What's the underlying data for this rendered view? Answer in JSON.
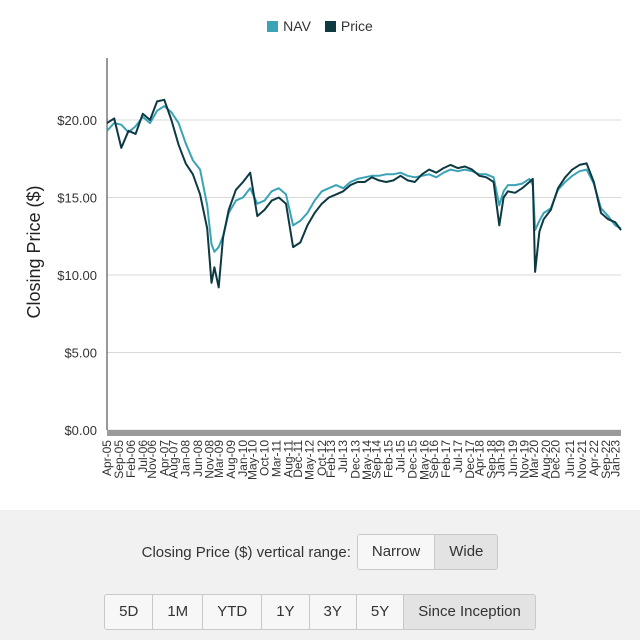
{
  "legend": {
    "nav_label": "NAV",
    "price_label": "Price"
  },
  "range_control": {
    "label": "Closing Price ($) vertical range:",
    "options": [
      "Narrow",
      "Wide"
    ],
    "selected": "Wide"
  },
  "period_buttons": [
    "5D",
    "1M",
    "YTD",
    "1Y",
    "3Y",
    "5Y",
    "Since Inception"
  ],
  "period_selected": "Since Inception",
  "colors": {
    "nav": "#3aa3b5",
    "price": "#0d3a42",
    "grid": "#d9d9d9",
    "axis_band": "#9a9a9a"
  },
  "chart_data": {
    "type": "line",
    "title": "",
    "xlabel": "",
    "ylabel": "Closing Price ($)",
    "ylim": [
      0,
      24
    ],
    "yticks": [
      "$0.00",
      "$5.00",
      "$10.00",
      "$15.00",
      "$20.00"
    ],
    "ytick_values": [
      0,
      5,
      10,
      15,
      20
    ],
    "xlim": [
      2005.25,
      2023.2
    ],
    "xticks": [
      "Apr-05",
      "Sep-05",
      "Feb-06",
      "Jul-06",
      "Nov-06",
      "Apr-07",
      "Aug-07",
      "Jan-08",
      "Jun-08",
      "Nov-08",
      "Mar-09",
      "Aug-09",
      "Jan-10",
      "May-10",
      "Oct-10",
      "Mar-11",
      "Aug-11",
      "Dec-11",
      "May-12",
      "Oct-12",
      "Feb-13",
      "Jul-13",
      "Dec-13",
      "May-14",
      "Sep-14",
      "Feb-15",
      "Jul-15",
      "Dec-15",
      "May-16",
      "Sep-16",
      "Feb-17",
      "Jul-17",
      "Dec-17",
      "Apr-18",
      "Sep-18",
      "Jan-19",
      "Jun-19",
      "Nov-19",
      "Mar-20",
      "Aug-20",
      "Dec-20",
      "Jun-21",
      "Nov-21",
      "Apr-22",
      "Sep-22",
      "Jan-23"
    ],
    "xtick_values": [
      2005.25,
      2005.67,
      2006.08,
      2006.5,
      2006.83,
      2007.25,
      2007.58,
      2008.0,
      2008.42,
      2008.83,
      2009.17,
      2009.58,
      2010.0,
      2010.33,
      2010.75,
      2011.17,
      2011.58,
      2011.92,
      2012.33,
      2012.75,
      2013.08,
      2013.5,
      2013.92,
      2014.33,
      2014.67,
      2015.08,
      2015.5,
      2015.92,
      2016.33,
      2016.67,
      2017.08,
      2017.5,
      2017.92,
      2018.25,
      2018.67,
      2019.0,
      2019.42,
      2019.83,
      2020.17,
      2020.58,
      2020.92,
      2021.42,
      2021.83,
      2022.25,
      2022.67,
      2023.0
    ],
    "grid": true,
    "legend_position": "top-center",
    "series": [
      {
        "name": "NAV",
        "x": [
          2005.25,
          2005.5,
          2005.75,
          2006.0,
          2006.25,
          2006.5,
          2006.75,
          2007.0,
          2007.25,
          2007.5,
          2007.75,
          2008.0,
          2008.25,
          2008.5,
          2008.75,
          2008.9,
          2009.0,
          2009.15,
          2009.3,
          2009.5,
          2009.75,
          2010.0,
          2010.25,
          2010.5,
          2010.75,
          2011.0,
          2011.25,
          2011.5,
          2011.75,
          2012.0,
          2012.25,
          2012.5,
          2012.75,
          2013.0,
          2013.25,
          2013.5,
          2013.75,
          2014.0,
          2014.25,
          2014.5,
          2014.75,
          2015.0,
          2015.25,
          2015.5,
          2015.75,
          2016.0,
          2016.25,
          2016.5,
          2016.75,
          2017.0,
          2017.25,
          2017.5,
          2017.75,
          2018.0,
          2018.25,
          2018.5,
          2018.75,
          2018.95,
          2019.1,
          2019.25,
          2019.5,
          2019.75,
          2020.0,
          2020.12,
          2020.2,
          2020.35,
          2020.5,
          2020.75,
          2021.0,
          2021.25,
          2021.5,
          2021.75,
          2022.0,
          2022.25,
          2022.5,
          2022.75,
          2023.0,
          2023.2
        ],
        "y": [
          19.3,
          19.8,
          19.7,
          19.2,
          19.6,
          20.2,
          19.8,
          20.6,
          20.9,
          20.5,
          19.8,
          18.5,
          17.4,
          16.8,
          14.5,
          12.0,
          11.5,
          11.8,
          12.5,
          14.0,
          14.8,
          15.0,
          15.6,
          14.6,
          14.8,
          15.4,
          15.6,
          15.2,
          13.2,
          13.5,
          14.0,
          14.8,
          15.4,
          15.6,
          15.8,
          15.6,
          16.0,
          16.2,
          16.3,
          16.4,
          16.4,
          16.5,
          16.5,
          16.6,
          16.4,
          16.3,
          16.4,
          16.5,
          16.3,
          16.6,
          16.8,
          16.7,
          16.8,
          16.7,
          16.5,
          16.5,
          16.3,
          14.5,
          15.4,
          15.8,
          15.8,
          15.9,
          16.2,
          15.8,
          12.9,
          13.5,
          14.0,
          14.3,
          15.5,
          16.0,
          16.4,
          16.7,
          16.8,
          15.9,
          14.3,
          13.8,
          13.2,
          13.0
        ]
      },
      {
        "name": "Price",
        "x": [
          2005.25,
          2005.5,
          2005.75,
          2006.0,
          2006.25,
          2006.5,
          2006.75,
          2007.0,
          2007.25,
          2007.5,
          2007.75,
          2008.0,
          2008.25,
          2008.5,
          2008.75,
          2008.9,
          2009.0,
          2009.15,
          2009.3,
          2009.5,
          2009.75,
          2010.0,
          2010.25,
          2010.5,
          2010.75,
          2011.0,
          2011.25,
          2011.5,
          2011.75,
          2012.0,
          2012.25,
          2012.5,
          2012.75,
          2013.0,
          2013.25,
          2013.5,
          2013.75,
          2014.0,
          2014.25,
          2014.5,
          2014.75,
          2015.0,
          2015.25,
          2015.5,
          2015.75,
          2016.0,
          2016.25,
          2016.5,
          2016.75,
          2017.0,
          2017.25,
          2017.5,
          2017.75,
          2018.0,
          2018.25,
          2018.5,
          2018.75,
          2018.95,
          2019.1,
          2019.25,
          2019.5,
          2019.75,
          2020.0,
          2020.12,
          2020.2,
          2020.35,
          2020.5,
          2020.75,
          2021.0,
          2021.25,
          2021.5,
          2021.75,
          2022.0,
          2022.25,
          2022.5,
          2022.75,
          2023.0,
          2023.2
        ],
        "y": [
          19.8,
          20.1,
          18.2,
          19.3,
          19.1,
          20.4,
          20.0,
          21.2,
          21.3,
          20.0,
          18.4,
          17.2,
          16.5,
          15.2,
          13.0,
          9.5,
          10.5,
          9.2,
          12.4,
          14.2,
          15.5,
          16.0,
          16.6,
          13.8,
          14.2,
          14.8,
          15.0,
          14.6,
          11.8,
          12.1,
          13.2,
          14.0,
          14.6,
          15.0,
          15.2,
          15.4,
          15.8,
          16.0,
          16.0,
          16.3,
          16.1,
          16.0,
          16.1,
          16.4,
          16.1,
          16.0,
          16.5,
          16.8,
          16.6,
          16.9,
          17.1,
          16.9,
          17.0,
          16.8,
          16.4,
          16.3,
          16.0,
          13.2,
          15.0,
          15.4,
          15.3,
          15.6,
          16.0,
          16.2,
          10.2,
          12.8,
          13.6,
          14.2,
          15.6,
          16.3,
          16.8,
          17.1,
          17.2,
          16.0,
          14.0,
          13.6,
          13.4,
          12.9
        ]
      }
    ]
  }
}
